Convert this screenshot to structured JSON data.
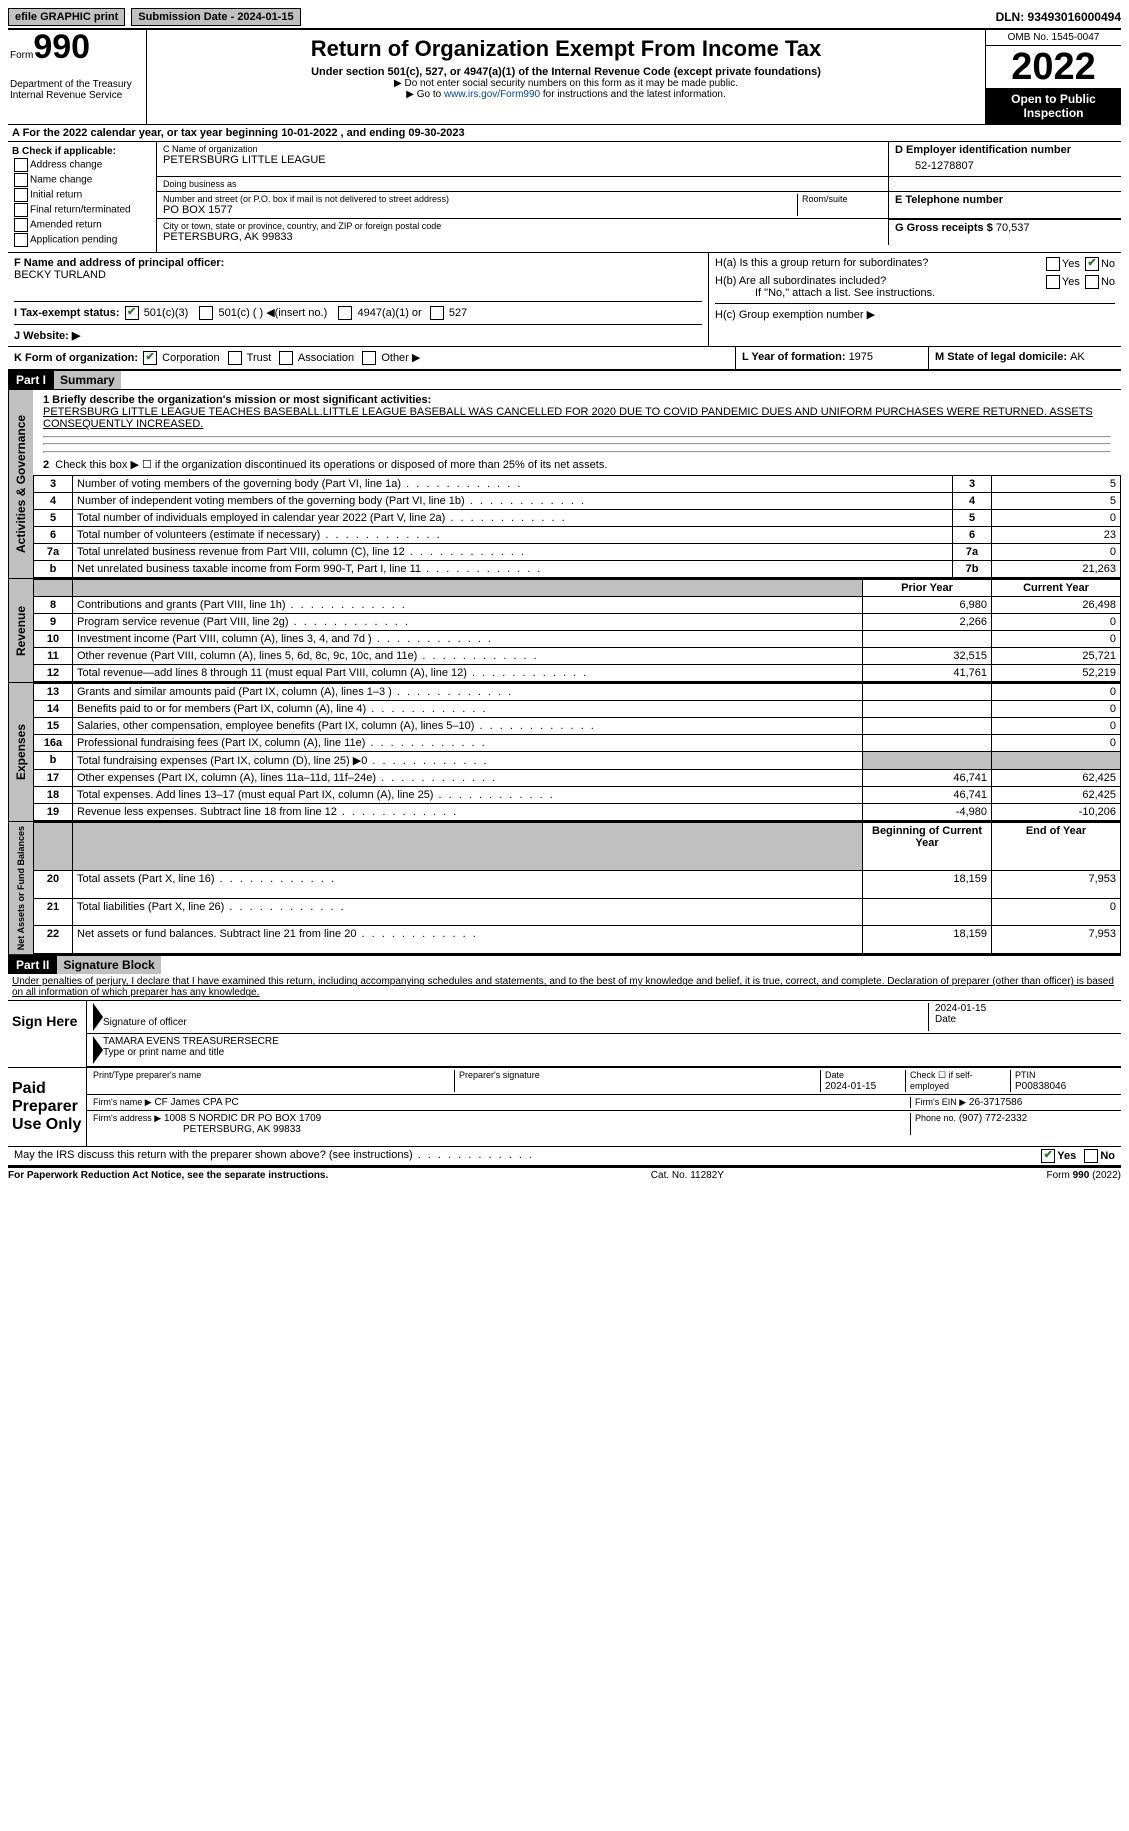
{
  "top_bar": {
    "efile": "efile GRAPHIC print",
    "submission_label": "Submission Date - 2024-01-15",
    "dln": "DLN: 93493016000494"
  },
  "header": {
    "form_label": "Form",
    "form_number": "990",
    "dept": "Department of the Treasury",
    "irs": "Internal Revenue Service",
    "title": "Return of Organization Exempt From Income Tax",
    "subtitle": "Under section 501(c), 527, or 4947(a)(1) of the Internal Revenue Code (except private foundations)",
    "note1": "▶ Do not enter social security numbers on this form as it may be made public.",
    "note2_pre": "▶ Go to ",
    "note2_link": "www.irs.gov/Form990",
    "note2_post": " for instructions and the latest information.",
    "omb": "OMB No. 1545-0047",
    "year": "2022",
    "open": "Open to Public Inspection"
  },
  "row_a": "A For the 2022 calendar year, or tax year beginning 10-01-2022    , and ending 09-30-2023",
  "col_b": {
    "title": "B Check if applicable:",
    "items": [
      "Address change",
      "Name change",
      "Initial return",
      "Final return/terminated",
      "Amended return",
      "Application pending"
    ]
  },
  "col_c": {
    "c_label": "C Name of organization",
    "org_name": "PETERSBURG LITTLE LEAGUE",
    "dba_label": "Doing business as",
    "addr_label": "Number and street (or P.O. box if mail is not delivered to street address)",
    "room_label": "Room/suite",
    "addr": "PO BOX 1577",
    "city_label": "City or town, state or province, country, and ZIP or foreign postal code",
    "city": "PETERSBURG, AK  99833"
  },
  "col_d": {
    "label": "D Employer identification number",
    "val": "52-1278807"
  },
  "col_e": {
    "label": "E Telephone number",
    "val": ""
  },
  "col_g": {
    "label": "G Gross receipts $",
    "val": "70,537"
  },
  "col_f": {
    "label": "F  Name and address of principal officer:",
    "name": "BECKY TURLAND"
  },
  "col_h": {
    "a": "H(a)  Is this a group return for subordinates?",
    "b": "H(b)  Are all subordinates included?",
    "b_note": "If \"No,\" attach a list. See instructions.",
    "c": "H(c)  Group exemption number ▶"
  },
  "row_i": {
    "label": "I    Tax-exempt status:",
    "opt1": "501(c)(3)",
    "opt2": "501(c) (  ) ◀(insert no.)",
    "opt3": "4947(a)(1) or",
    "opt4": "527"
  },
  "row_j": {
    "label": "J    Website: ▶"
  },
  "row_k": {
    "label": "K Form of organization:",
    "opts": [
      "Corporation",
      "Trust",
      "Association",
      "Other ▶"
    ]
  },
  "row_l": {
    "label": "L Year of formation: ",
    "val": "1975"
  },
  "row_m": {
    "label": "M State of legal domicile: ",
    "val": "AK"
  },
  "part1": {
    "header": "Part I",
    "title": "Summary"
  },
  "mission_label": "1   Briefly describe the organization's mission or most significant activities:",
  "mission": "PETERSBURG LITTLE LEAGUE TEACHES BASEBALL.LITTLE LEAGUE BASEBALL WAS CANCELLED FOR 2020 DUE TO COVID PANDEMIC DUES AND UNIFORM PURCHASES WERE RETURNED. ASSETS CONSEQUENTLY INCREASED.",
  "line2": "Check this box ▶ ☐  if the organization discontinued its operations or disposed of more than 25% of its net assets.",
  "gov_rows": [
    {
      "n": "3",
      "t": "Number of voting members of the governing body (Part VI, line 1a)",
      "b": "3",
      "v": "5"
    },
    {
      "n": "4",
      "t": "Number of independent voting members of the governing body (Part VI, line 1b)",
      "b": "4",
      "v": "5"
    },
    {
      "n": "5",
      "t": "Total number of individuals employed in calendar year 2022 (Part V, line 2a)",
      "b": "5",
      "v": "0"
    },
    {
      "n": "6",
      "t": "Total number of volunteers (estimate if necessary)",
      "b": "6",
      "v": "23"
    },
    {
      "n": "7a",
      "t": "Total unrelated business revenue from Part VIII, column (C), line 12",
      "b": "7a",
      "v": "0"
    },
    {
      "n": "b",
      "t": "Net unrelated business taxable income from Form 990-T, Part I, line 11",
      "b": "7b",
      "v": "21,263"
    }
  ],
  "rev_head": {
    "py": "Prior Year",
    "cy": "Current Year"
  },
  "rev_rows": [
    {
      "n": "8",
      "t": "Contributions and grants (Part VIII, line 1h)",
      "py": "6,980",
      "cy": "26,498"
    },
    {
      "n": "9",
      "t": "Program service revenue (Part VIII, line 2g)",
      "py": "2,266",
      "cy": "0"
    },
    {
      "n": "10",
      "t": "Investment income (Part VIII, column (A), lines 3, 4, and 7d )",
      "py": "",
      "cy": "0"
    },
    {
      "n": "11",
      "t": "Other revenue (Part VIII, column (A), lines 5, 6d, 8c, 9c, 10c, and 11e)",
      "py": "32,515",
      "cy": "25,721"
    },
    {
      "n": "12",
      "t": "Total revenue—add lines 8 through 11 (must equal Part VIII, column (A), line 12)",
      "py": "41,761",
      "cy": "52,219"
    }
  ],
  "exp_rows": [
    {
      "n": "13",
      "t": "Grants and similar amounts paid (Part IX, column (A), lines 1–3 )",
      "py": "",
      "cy": "0"
    },
    {
      "n": "14",
      "t": "Benefits paid to or for members (Part IX, column (A), line 4)",
      "py": "",
      "cy": "0"
    },
    {
      "n": "15",
      "t": "Salaries, other compensation, employee benefits (Part IX, column (A), lines 5–10)",
      "py": "",
      "cy": "0"
    },
    {
      "n": "16a",
      "t": "Professional fundraising fees (Part IX, column (A), line 11e)",
      "py": "",
      "cy": "0"
    },
    {
      "n": "b",
      "t": "Total fundraising expenses (Part IX, column (D), line 25) ▶0",
      "py": "shade",
      "cy": "shade"
    },
    {
      "n": "17",
      "t": "Other expenses (Part IX, column (A), lines 11a–11d, 11f–24e)",
      "py": "46,741",
      "cy": "62,425"
    },
    {
      "n": "18",
      "t": "Total expenses. Add lines 13–17 (must equal Part IX, column (A), line 25)",
      "py": "46,741",
      "cy": "62,425"
    },
    {
      "n": "19",
      "t": "Revenue less expenses. Subtract line 18 from line 12",
      "py": "-4,980",
      "cy": "-10,206"
    }
  ],
  "na_head": {
    "b": "Beginning of Current Year",
    "e": "End of Year"
  },
  "na_rows": [
    {
      "n": "20",
      "t": "Total assets (Part X, line 16)",
      "py": "18,159",
      "cy": "7,953"
    },
    {
      "n": "21",
      "t": "Total liabilities (Part X, line 26)",
      "py": "",
      "cy": "0"
    },
    {
      "n": "22",
      "t": "Net assets or fund balances. Subtract line 21 from line 20",
      "py": "18,159",
      "cy": "7,953"
    }
  ],
  "part2": {
    "header": "Part II",
    "title": "Signature Block"
  },
  "penalties": "Under penalties of perjury, I declare that I have examined this return, including accompanying schedules and statements, and to the best of my knowledge and belief, it is true, correct, and complete. Declaration of preparer (other than officer) is based on all information of which preparer has any knowledge.",
  "sign_here": "Sign Here",
  "sig_officer": "Signature of officer",
  "sig_date": "2024-01-15",
  "sig_date_l": "Date",
  "sig_name": "TAMARA EVENS  TREASURERSECRE",
  "sig_name_l": "Type or print name and title",
  "paid": "Paid Preparer Use Only",
  "prep": {
    "name_l": "Print/Type preparer's name",
    "name": "",
    "sig_l": "Preparer's signature",
    "date_l": "Date",
    "date": "2024-01-15",
    "self_l": "Check ☐ if self-employed",
    "ptin_l": "PTIN",
    "ptin": "P00838046",
    "firm_l": "Firm's name    ▶",
    "firm": "CF James CPA PC",
    "ein_l": "Firm's EIN ▶",
    "ein": "26-3717586",
    "addr_l": "Firm's address ▶",
    "addr": "1008 S NORDIC DR PO BOX 1709",
    "addr2": "PETERSBURG, AK  99833",
    "phone_l": "Phone no.",
    "phone": "(907) 772-2332"
  },
  "discuss": "May the IRS discuss this return with the preparer shown above? (see instructions)",
  "footer": {
    "left": "For Paperwork Reduction Act Notice, see the separate instructions.",
    "mid": "Cat. No. 11282Y",
    "right": "Form 990 (2022)"
  },
  "vert": {
    "gov": "Activities & Governance",
    "rev": "Revenue",
    "exp": "Expenses",
    "na": "Net Assets or Fund Balances"
  }
}
